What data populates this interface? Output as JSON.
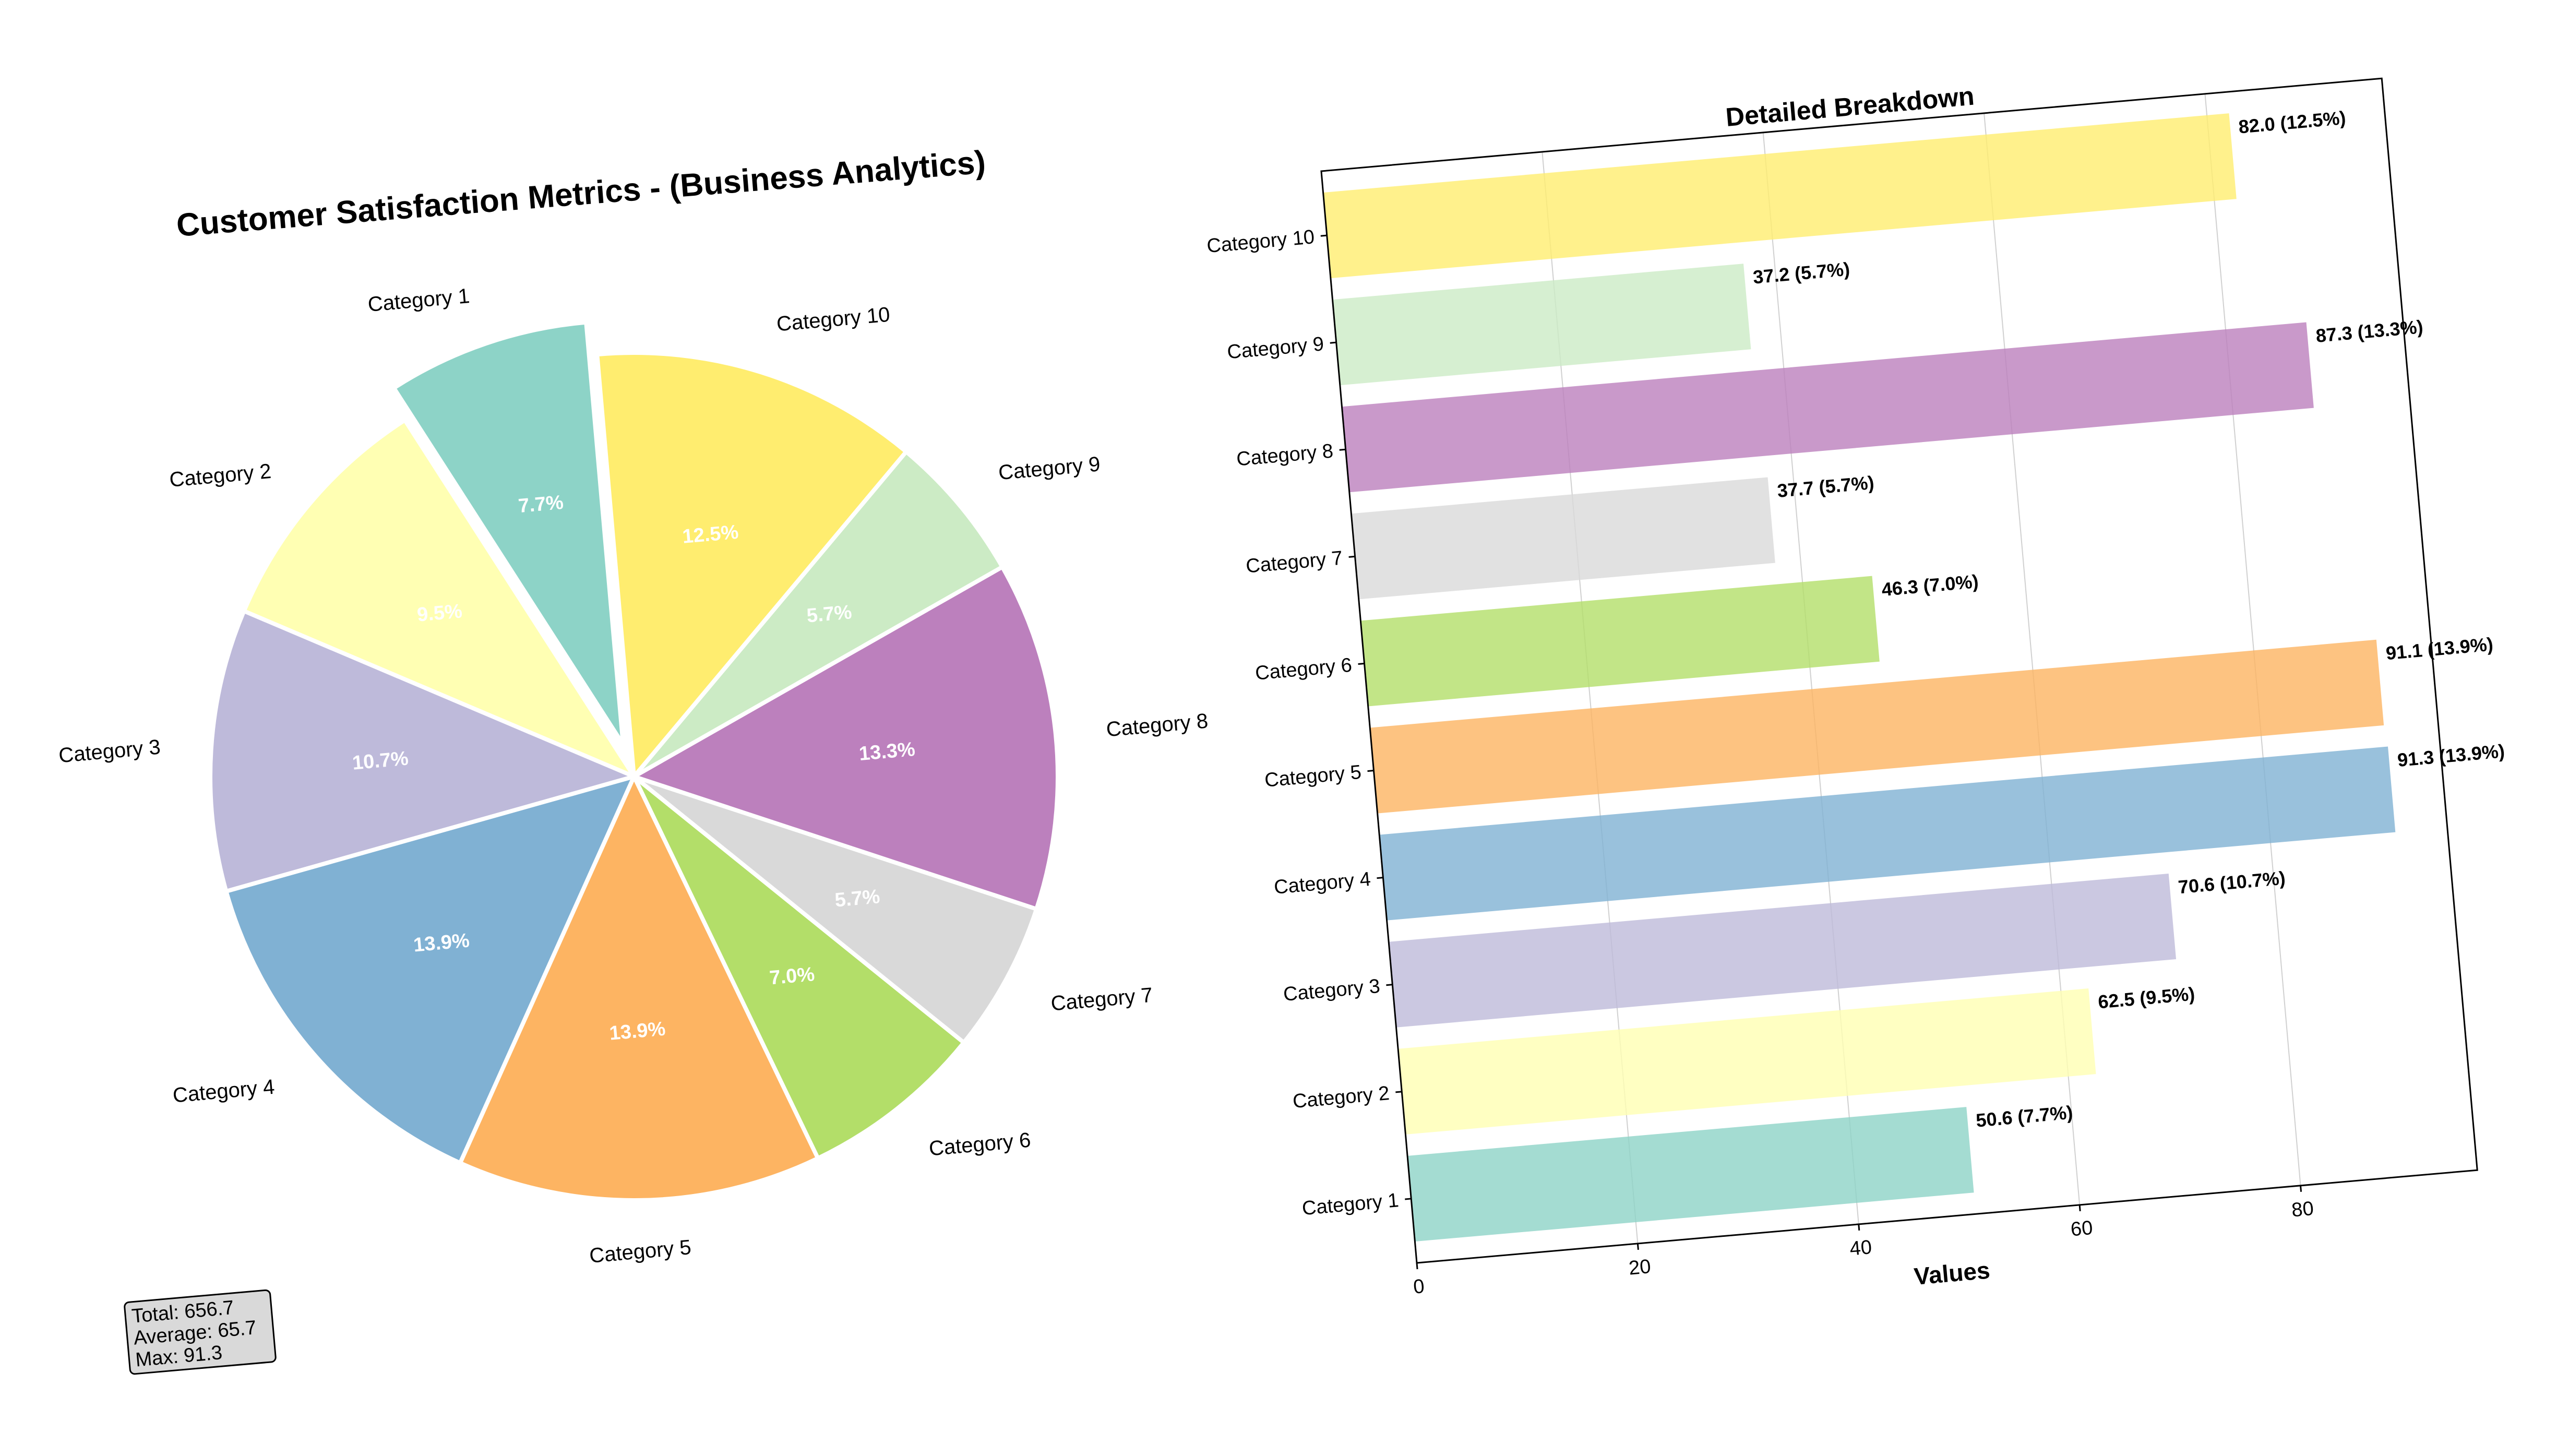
{
  "chart_data": [
    {
      "type": "pie",
      "title": "Customer Satisfaction Metrics - (Business Analytics)",
      "categories": [
        "Category 1",
        "Category 2",
        "Category 3",
        "Category 4",
        "Category 5",
        "Category 6",
        "Category 7",
        "Category 8",
        "Category 9",
        "Category 10"
      ],
      "values": [
        50.6,
        62.5,
        70.6,
        91.3,
        91.1,
        46.3,
        37.7,
        87.3,
        37.2,
        82.0
      ],
      "percent_labels": [
        "7.7%",
        "9.5%",
        "10.7%",
        "13.9%",
        "13.9%",
        "7.0%",
        "5.7%",
        "13.3%",
        "5.7%",
        "12.5%"
      ],
      "colors": [
        "#8dd3c7",
        "#ffffb3",
        "#bebada",
        "#80b1d3",
        "#fdb462",
        "#b3de69",
        "#d9d9d9",
        "#bc80bd",
        "#ccebc5",
        "#ffed6f"
      ],
      "exploded": "Category 1",
      "stats_box": {
        "total": "Total: 656.7",
        "average": "Average: 65.7",
        "max": "Max: 91.3"
      }
    },
    {
      "type": "bar",
      "orientation": "horizontal",
      "title": "Detailed Breakdown",
      "xlabel": "Values",
      "ylabel": "",
      "categories": [
        "Category 1",
        "Category 2",
        "Category 3",
        "Category 4",
        "Category 5",
        "Category 6",
        "Category 7",
        "Category 8",
        "Category 9",
        "Category 10"
      ],
      "values": [
        50.6,
        62.5,
        70.6,
        91.3,
        91.1,
        46.3,
        37.7,
        87.3,
        37.2,
        82.0
      ],
      "value_labels": [
        "50.6 (7.7%)",
        "62.5 (9.5%)",
        "70.6 (10.7%)",
        "91.3 (13.9%)",
        "91.1 (13.9%)",
        "46.3 (7.0%)",
        "37.7 (5.7%)",
        "87.3 (13.3%)",
        "37.2 (5.7%)",
        "82.0 (12.5%)"
      ],
      "xticks": [
        "0",
        "20",
        "40",
        "60",
        "80"
      ],
      "xlim": [
        0,
        96
      ],
      "grid": "vertical",
      "colors": [
        "#8dd3c7",
        "#ffffb3",
        "#bebada",
        "#80b1d3",
        "#fdb462",
        "#b3de69",
        "#d9d9d9",
        "#bc80bd",
        "#ccebc5",
        "#ffed6f"
      ]
    }
  ]
}
